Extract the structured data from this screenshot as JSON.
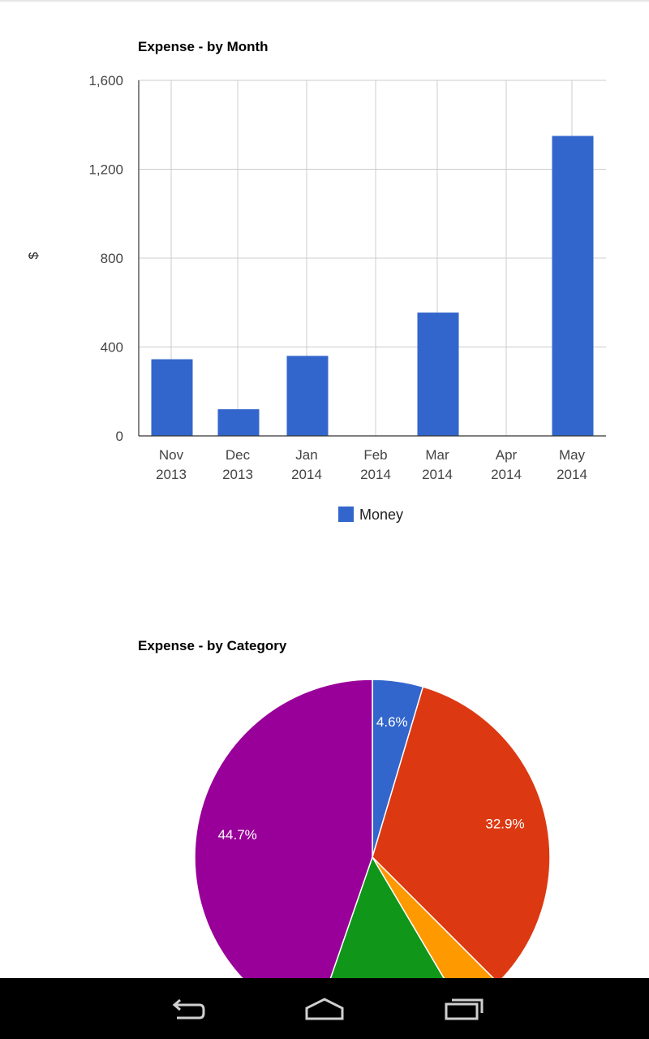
{
  "chart_data": [
    {
      "type": "bar",
      "title": "Expense - by Month",
      "ylabel": "$",
      "xlabel": "",
      "categories": [
        "Nov 2013",
        "Dec 2013",
        "Jan 2014",
        "Feb 2014",
        "Mar 2014",
        "Apr 2014",
        "May 2014"
      ],
      "series": [
        {
          "name": "Money",
          "color": "#3366cc",
          "values": [
            345,
            120,
            360,
            0,
            555,
            0,
            1350
          ]
        }
      ],
      "ylim": [
        0,
        1600
      ],
      "yticks": [
        "0",
        "400",
        "800",
        "1,200",
        "1,600"
      ],
      "grid": true,
      "legend": "bottom"
    },
    {
      "type": "pie",
      "title": "Expense - by Category",
      "slices": [
        {
          "value": 4.6,
          "label": "4.6%",
          "color": "#3366cc"
        },
        {
          "value": 32.9,
          "label": "32.9%",
          "color": "#dc3912"
        },
        {
          "value": 4.0,
          "label": "",
          "color": "#ff9900"
        },
        {
          "value": 13.8,
          "label": "",
          "color": "#109618"
        },
        {
          "value": 44.7,
          "label": "44.7%",
          "color": "#990099"
        }
      ]
    }
  ],
  "nav": {
    "back": "back-icon",
    "home": "home-icon",
    "recent": "recent-apps-icon"
  }
}
